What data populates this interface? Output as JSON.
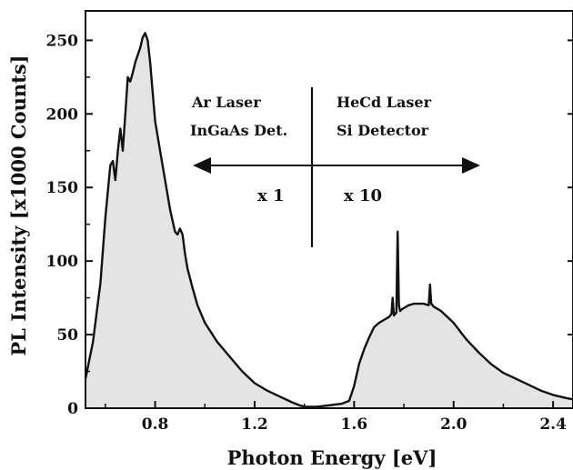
{
  "chart_data": {
    "type": "area",
    "xlabel": "Photon Energy  [eV]",
    "ylabel": "PL Intensity  [x1000 Counts]",
    "xlim": [
      0.52,
      2.48
    ],
    "ylim": [
      0,
      270
    ],
    "x_ticks": [
      "0.8",
      "1.2",
      "1.6",
      "2.0",
      "2.4"
    ],
    "y_ticks": [
      "0",
      "50",
      "100",
      "150",
      "200",
      "250"
    ],
    "grid": false,
    "series": [
      {
        "x": [
          0.52,
          0.55,
          0.58,
          0.6,
          0.62,
          0.63,
          0.64,
          0.65,
          0.66,
          0.67,
          0.68,
          0.69,
          0.7,
          0.71,
          0.72,
          0.73,
          0.74,
          0.75,
          0.76,
          0.77,
          0.78,
          0.79,
          0.8,
          0.82,
          0.84,
          0.86,
          0.88,
          0.89,
          0.9,
          0.91,
          0.92,
          0.93,
          0.95,
          0.97,
          1.0,
          1.05,
          1.1,
          1.15,
          1.2,
          1.25,
          1.3,
          1.35,
          1.38,
          1.4,
          1.45,
          1.5,
          1.55,
          1.58,
          1.6,
          1.62,
          1.64,
          1.66,
          1.68,
          1.7,
          1.72,
          1.74,
          1.75,
          1.755,
          1.76,
          1.77,
          1.775,
          1.78,
          1.785,
          1.79,
          1.8,
          1.82,
          1.84,
          1.86,
          1.88,
          1.9,
          1.905,
          1.91,
          1.915,
          1.92,
          1.95,
          2.0,
          2.05,
          2.1,
          2.15,
          2.2,
          2.25,
          2.3,
          2.35,
          2.4,
          2.45,
          2.48
        ],
        "y": [
          20,
          45,
          85,
          130,
          165,
          168,
          155,
          175,
          190,
          175,
          200,
          225,
          222,
          228,
          235,
          240,
          245,
          252,
          255,
          250,
          235,
          215,
          195,
          175,
          155,
          135,
          120,
          118,
          122,
          118,
          105,
          95,
          82,
          70,
          58,
          45,
          35,
          25,
          17,
          12,
          8,
          4,
          2,
          1,
          1,
          2,
          3,
          5,
          15,
          30,
          40,
          48,
          55,
          58,
          60,
          62,
          64,
          75,
          63,
          65,
          120,
          70,
          66,
          67,
          68,
          70,
          71,
          71,
          71,
          70,
          84,
          71,
          70,
          69,
          66,
          58,
          47,
          38,
          30,
          24,
          20,
          16,
          12,
          9,
          7,
          6
        ],
        "fill": "#e4e4e4",
        "stroke": "#111111"
      }
    ],
    "annotations": {
      "left_line1": "Ar Laser",
      "left_line2": "InGaAs Det.",
      "right_line1": "HeCd Laser",
      "right_line2": "Si Detector",
      "left_scale": "x 1",
      "right_scale": "x 10"
    },
    "divider_x": 1.43
  }
}
